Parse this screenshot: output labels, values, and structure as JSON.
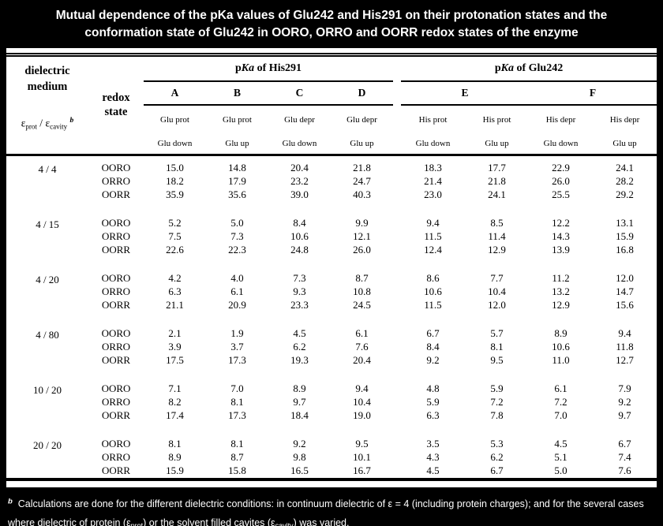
{
  "title": {
    "line1": "Mutual dependence of the pKa values of Glu242 and His291 on their protonation states and the",
    "line2": "conformation state of Glu242 in OORO, ORRO and OORR redox states of the enzyme"
  },
  "table": {
    "corner": {
      "line1": "dielectric",
      "line2": "medium",
      "epsilon1": "ε",
      "epsilon1_sub": "prot",
      "slash": "/",
      "epsilon2": "ε",
      "epsilon2_sub": "cavity",
      "footnote_ref": "b"
    },
    "redox_header": {
      "line1": "redox",
      "line2": "state"
    },
    "group_headers": {
      "his_prefix": "p",
      "his_italic": "Ka",
      "his_rest": " of His291",
      "glu_prefix": "p",
      "glu_italic": "Ka",
      "glu_rest": " of Glu242"
    },
    "letters": [
      "A",
      "B",
      "C",
      "D",
      "E",
      "F"
    ],
    "sub_row1": [
      "Glu prot",
      "Glu prot",
      "Glu depr",
      "Glu depr",
      "His prot",
      "His prot",
      "His depr",
      "His depr"
    ],
    "sub_row2": [
      "Glu down",
      "Glu up",
      "Glu down",
      "Glu up",
      "Glu down",
      "Glu up",
      "Glu down",
      "Glu up"
    ],
    "groups": [
      {
        "medium": "4 / 4",
        "rows": [
          {
            "state": "OORO",
            "values": [
              "15.0",
              "14.8",
              "20.4",
              "21.8",
              "18.3",
              "17.7",
              "22.9",
              "24.1"
            ]
          },
          {
            "state": "ORRO",
            "values": [
              "18.2",
              "17.9",
              "23.2",
              "24.7",
              "21.4",
              "21.8",
              "26.0",
              "28.2"
            ]
          },
          {
            "state": "OORR",
            "values": [
              "35.9",
              "35.6",
              "39.0",
              "40.3",
              "23.0",
              "24.1",
              "25.5",
              "29.2"
            ]
          }
        ]
      },
      {
        "medium": "4 / 15",
        "rows": [
          {
            "state": "OORO",
            "values": [
              "5.2",
              "5.0",
              "8.4",
              "9.9",
              "9.4",
              "8.5",
              "12.2",
              "13.1"
            ]
          },
          {
            "state": "ORRO",
            "values": [
              "7.5",
              "7.3",
              "10.6",
              "12.1",
              "11.5",
              "11.4",
              "14.3",
              "15.9"
            ]
          },
          {
            "state": "OORR",
            "values": [
              "22.6",
              "22.3",
              "24.8",
              "26.0",
              "12.4",
              "12.9",
              "13.9",
              "16.8"
            ]
          }
        ]
      },
      {
        "medium": "4 / 20",
        "rows": [
          {
            "state": "OORO",
            "values": [
              "4.2",
              "4.0",
              "7.3",
              "8.7",
              "8.6",
              "7.7",
              "11.2",
              "12.0"
            ]
          },
          {
            "state": "ORRO",
            "values": [
              "6.3",
              "6.1",
              "9.3",
              "10.8",
              "10.6",
              "10.4",
              "13.2",
              "14.7"
            ]
          },
          {
            "state": "OORR",
            "values": [
              "21.1",
              "20.9",
              "23.3",
              "24.5",
              "11.5",
              "12.0",
              "12.9",
              "15.6"
            ]
          }
        ]
      },
      {
        "medium": "4 / 80",
        "rows": [
          {
            "state": "OORO",
            "values": [
              "2.1",
              "1.9",
              "4.5",
              "6.1",
              "6.7",
              "5.7",
              "8.9",
              "9.4"
            ]
          },
          {
            "state": "ORRO",
            "values": [
              "3.9",
              "3.7",
              "6.2",
              "7.6",
              "8.4",
              "8.1",
              "10.6",
              "11.8"
            ]
          },
          {
            "state": "OORR",
            "values": [
              "17.5",
              "17.3",
              "19.3",
              "20.4",
              "9.2",
              "9.5",
              "11.0",
              "12.7"
            ]
          }
        ]
      },
      {
        "medium": "10 / 20",
        "rows": [
          {
            "state": "OORO",
            "values": [
              "7.1",
              "7.0",
              "8.9",
              "9.4",
              "4.8",
              "5.9",
              "6.1",
              "7.9"
            ]
          },
          {
            "state": "ORRO",
            "values": [
              "8.2",
              "8.1",
              "9.7",
              "10.4",
              "5.9",
              "7.2",
              "7.2",
              "9.2"
            ]
          },
          {
            "state": "OORR",
            "values": [
              "17.4",
              "17.3",
              "18.4",
              "19.0",
              "6.3",
              "7.8",
              "7.0",
              "9.7"
            ]
          }
        ]
      },
      {
        "medium": "20 / 20",
        "rows": [
          {
            "state": "OORO",
            "values": [
              "8.1",
              "8.1",
              "9.2",
              "9.5",
              "3.5",
              "5.3",
              "4.5",
              "6.7"
            ]
          },
          {
            "state": "ORRO",
            "values": [
              "8.9",
              "8.7",
              "9.8",
              "10.1",
              "4.3",
              "6.2",
              "5.1",
              "7.4"
            ]
          },
          {
            "state": "OORR",
            "values": [
              "15.9",
              "15.8",
              "16.5",
              "16.7",
              "4.5",
              "6.7",
              "5.0",
              "7.6"
            ]
          }
        ]
      }
    ]
  },
  "footnote": {
    "marker": "b",
    "line1": "Calculations are done for the different dielectric conditions: in continuum dielectric of ε = 4 (including protein charges); and for the several cases",
    "line2_pre": "where dielectric of protein (ε",
    "sub1": "prot",
    "line2_mid": ") or the solvent filled cavites (ε",
    "sub2": "cavity",
    "line2_end": ") was varied."
  },
  "colors": {
    "background": "#000000",
    "table_background": "#ffffff",
    "table_text": "#000000",
    "title_text": "#ffffff"
  }
}
